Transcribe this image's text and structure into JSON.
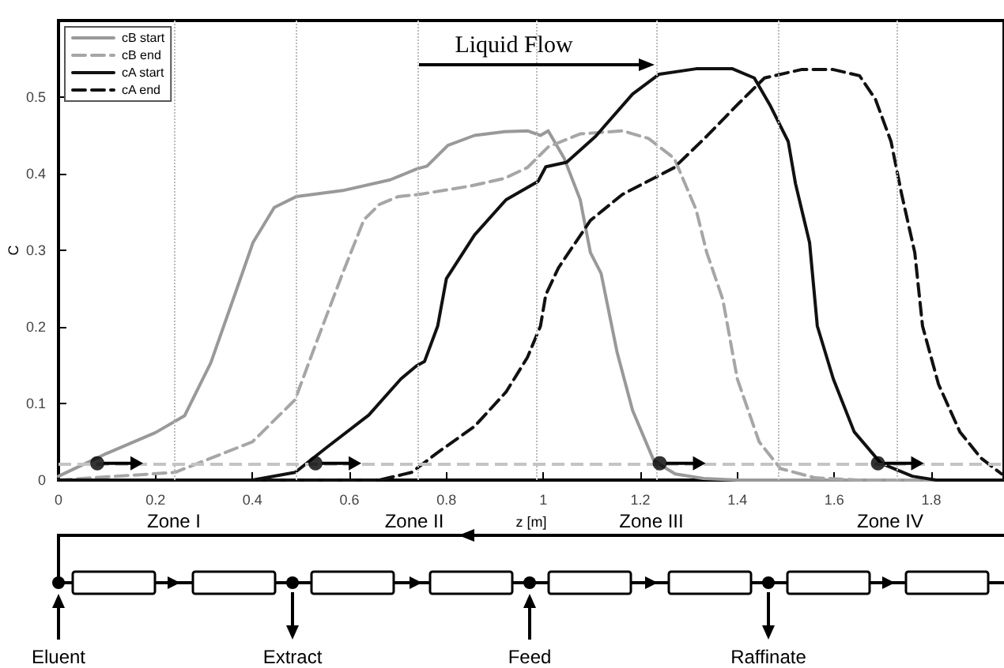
{
  "chart_data": {
    "type": "line",
    "xlabel": "z [m]",
    "ylabel": "C",
    "xlim": [
      0,
      1.95
    ],
    "xticks": [
      0,
      0.2,
      0.4,
      0.6,
      0.8,
      1,
      1.2,
      1.4,
      1.6,
      1.8
    ],
    "ylim": [
      0,
      0.6
    ],
    "yticks": [
      0,
      0.1,
      0.2,
      0.3,
      0.4,
      0.5
    ],
    "grid": false,
    "legend": "top left",
    "marker": "none",
    "series": [
      {
        "type": "scatter",
        "color": "#000000",
        "marker": "circle",
        "x": [
          0.08,
          0.53,
          1.24,
          1.69
        ],
        "values": [
          0.022,
          0.022,
          0.022,
          0.022
        ]
      },
      {
        "name": "cB start",
        "color": "#999999",
        "line_style": "solid",
        "x": [
          0,
          0.1,
          0.2,
          0.26,
          0.314,
          0.368,
          0.401,
          0.445,
          0.49,
          0.586,
          0.684,
          0.738,
          0.76,
          0.803,
          0.858,
          0.92,
          0.967,
          0.994,
          1.01,
          1.043,
          1.076,
          1.097,
          1.119,
          1.152,
          1.184,
          1.228,
          1.272,
          1.33,
          1.4,
          1.95
        ],
        "values": [
          0.005,
          0.035,
          0.062,
          0.084,
          0.153,
          0.25,
          0.31,
          0.356,
          0.37,
          0.378,
          0.392,
          0.406,
          0.41,
          0.437,
          0.45,
          0.455,
          0.456,
          0.45,
          0.456,
          0.42,
          0.366,
          0.297,
          0.27,
          0.167,
          0.091,
          0.025,
          0.008,
          0.002,
          0,
          0
        ]
      },
      {
        "name": "cB end",
        "color": "#a6a6a6",
        "line_style": "dashed",
        "x": [
          0,
          0.24,
          0.4,
          0.488,
          0.532,
          0.586,
          0.63,
          0.662,
          0.7,
          0.744,
          0.85,
          0.92,
          0.967,
          1.01,
          1.076,
          1.163,
          1.217,
          1.27,
          1.315,
          1.337,
          1.37,
          1.4,
          1.445,
          1.489,
          1.56,
          1.65,
          1.95
        ],
        "values": [
          0,
          0.01,
          0.05,
          0.105,
          0.18,
          0.27,
          0.34,
          0.36,
          0.37,
          0.373,
          0.384,
          0.394,
          0.408,
          0.435,
          0.452,
          0.456,
          0.446,
          0.42,
          0.353,
          0.297,
          0.236,
          0.132,
          0.05,
          0.015,
          0.003,
          0,
          0
        ]
      },
      {
        "name": "cA start",
        "color": "#111111",
        "line_style": "solid",
        "x": [
          0,
          0.4,
          0.488,
          0.554,
          0.64,
          0.706,
          0.738,
          0.755,
          0.782,
          0.8,
          0.858,
          0.923,
          0.989,
          1.005,
          1.048,
          1.108,
          1.184,
          1.239,
          1.315,
          1.39,
          1.435,
          1.467,
          1.505,
          1.52,
          1.549,
          1.565,
          1.598,
          1.641,
          1.696,
          1.761,
          1.81,
          1.95
        ],
        "values": [
          0,
          0,
          0.01,
          0.043,
          0.085,
          0.132,
          0.149,
          0.155,
          0.201,
          0.263,
          0.32,
          0.366,
          0.39,
          0.409,
          0.415,
          0.449,
          0.504,
          0.53,
          0.537,
          0.537,
          0.525,
          0.49,
          0.442,
          0.387,
          0.31,
          0.201,
          0.132,
          0.063,
          0.022,
          0.005,
          0,
          0
        ]
      },
      {
        "name": "cA end",
        "color": "#111111",
        "line_style": "dashed",
        "x": [
          0,
          0.662,
          0.728,
          0.782,
          0.858,
          0.923,
          0.967,
          0.994,
          1.005,
          1.031,
          1.097,
          1.163,
          1.27,
          1.337,
          1.4,
          1.456,
          1.532,
          1.598,
          1.652,
          1.685,
          1.717,
          1.739,
          1.766,
          1.782,
          1.815,
          1.859,
          1.902,
          1.945
        ],
        "values": [
          0,
          0,
          0.01,
          0.036,
          0.07,
          0.115,
          0.16,
          0.201,
          0.242,
          0.277,
          0.339,
          0.373,
          0.408,
          0.449,
          0.49,
          0.525,
          0.536,
          0.536,
          0.528,
          0.497,
          0.442,
          0.373,
          0.297,
          0.201,
          0.125,
          0.063,
          0.029,
          0.008
        ]
      }
    ],
    "ref_lines": [
      {
        "axis": "x",
        "value": 0.24,
        "color": "#bbbbbb",
        "line_style": "dotted"
      },
      {
        "axis": "x",
        "value": 0.49,
        "color": "#bbbbbb",
        "line_style": "dotted"
      },
      {
        "axis": "x",
        "value": 0.74,
        "color": "#bbbbbb",
        "line_style": "dotted"
      },
      {
        "axis": "x",
        "value": 0.985,
        "color": "#bbbbbb",
        "line_style": "dotted"
      },
      {
        "axis": "x",
        "value": 1.235,
        "color": "#bbbbbb",
        "line_style": "dotted"
      },
      {
        "axis": "x",
        "value": 1.485,
        "color": "#bbbbbb",
        "line_style": "dotted"
      },
      {
        "axis": "x",
        "value": 1.73,
        "color": "#bbbbbb",
        "line_style": "dotted"
      },
      {
        "axis": "y",
        "value": 0.022,
        "color": "#c4c4c4",
        "line_style": "dashed"
      }
    ],
    "annotations": [
      "Liquid Flow",
      "Zone I",
      "Zone II",
      "Zone III",
      "Zone IV",
      "Eluent",
      "Extract",
      "Feed",
      "Raffinate"
    ]
  }
}
